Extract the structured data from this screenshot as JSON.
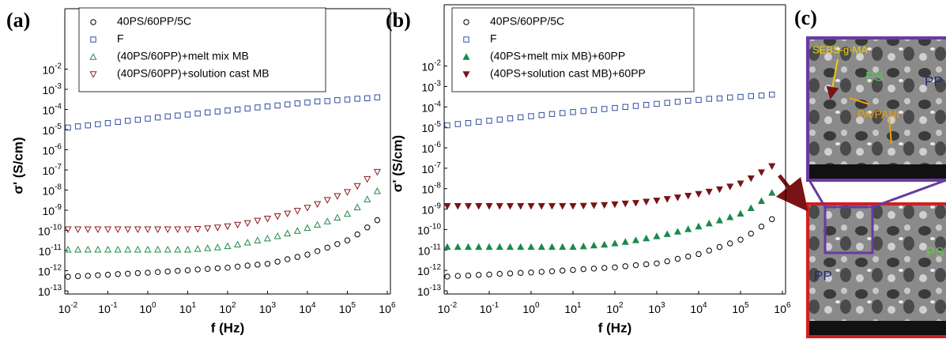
{
  "chart_data": [
    {
      "type": "scatter",
      "panel_label": "(a)",
      "xlabel": "f (Hz)",
      "ylabel": "σ' (S/cm)",
      "log_x": true,
      "log_y": true,
      "legend": "upper center",
      "xlim": [
        0.01,
        1000000
      ],
      "ylim": [
        1e-13,
        10
      ],
      "xticks": [
        {
          "value": 0.01,
          "label": "10-2"
        },
        {
          "value": 0.1,
          "label": "10-1"
        },
        {
          "value": 1,
          "label": "100"
        },
        {
          "value": 10,
          "label": "101"
        },
        {
          "value": 100,
          "label": "102"
        },
        {
          "value": 1000,
          "label": "103"
        },
        {
          "value": 10000,
          "label": "104"
        },
        {
          "value": 100000,
          "label": "105"
        },
        {
          "value": 1000000,
          "label": "106"
        }
      ],
      "yticks": [
        {
          "value": 1e-13,
          "label": "10-13"
        },
        {
          "value": 1e-12,
          "label": "10-12"
        },
        {
          "value": 1e-11,
          "label": "10-11"
        },
        {
          "value": 1e-10,
          "label": "10-10"
        },
        {
          "value": 1e-09,
          "label": "10-9"
        },
        {
          "value": 1e-08,
          "label": "10-8"
        },
        {
          "value": 1e-07,
          "label": "10-7"
        },
        {
          "value": 1e-06,
          "label": "10-6"
        },
        {
          "value": 1e-05,
          "label": "10-5"
        },
        {
          "value": 0.0001,
          "label": "10-4"
        },
        {
          "value": 0.001,
          "label": "10-3"
        },
        {
          "value": 0.01,
          "label": "10-2"
        }
      ],
      "x": [
        0.01,
        0.0178,
        0.0316,
        0.0562,
        0.1,
        0.178,
        0.316,
        0.562,
        1,
        1.78,
        3.16,
        5.62,
        10,
        17.8,
        31.6,
        56.2,
        100,
        178,
        316,
        562,
        1000,
        1780,
        3160,
        5620,
        10000,
        17800,
        31600,
        56200,
        100000,
        178000,
        316000,
        562000
      ],
      "series": [
        {
          "name": "40PS/60PP/5C",
          "color": "#000000",
          "marker": "circle",
          "filled": false,
          "values": [
            5e-13,
            5.4e-13,
            5.6e-13,
            6e-13,
            6.3e-13,
            6.8e-13,
            7.1e-13,
            7.6e-13,
            7.9e-13,
            8.5e-13,
            9.1e-13,
            9.8e-13,
            1.05e-12,
            1.15e-12,
            1.23e-12,
            1.32e-12,
            1.41e-12,
            1.6e-12,
            1.8e-12,
            2e-12,
            2.2e-12,
            2.8e-12,
            3.7e-12,
            4.8e-12,
            6.3e-12,
            9.3e-12,
            1.4e-11,
            2.1e-11,
            3.2e-11,
            6.3e-11,
            1.4e-10,
            3.2e-10
          ]
        },
        {
          "name": "F",
          "color": "#2e4fa0",
          "marker": "square",
          "filled": false,
          "values": [
            1.26e-05,
            1.45e-05,
            1.62e-05,
            1.86e-05,
            2.1e-05,
            2.4e-05,
            2.75e-05,
            3.1e-05,
            3.5e-05,
            4e-05,
            4.5e-05,
            5e-05,
            5.6e-05,
            6.3e-05,
            7.1e-05,
            7.9e-05,
            8.9e-05,
            0.0001,
            0.000112,
            0.000126,
            0.000141,
            0.000158,
            0.000178,
            0.0002,
            0.00022,
            0.00025,
            0.00026,
            0.00029,
            0.00031,
            0.00034,
            0.00036,
            0.0004
          ]
        },
        {
          "name": "(40PS/60PP)+melt mix MB",
          "color": "#1a8a4a",
          "marker": "triangle-up",
          "filled": false,
          "values": [
            1.12e-11,
            1.12e-11,
            1.12e-11,
            1.12e-11,
            1.12e-11,
            1.12e-11,
            1.12e-11,
            1.12e-11,
            1.12e-11,
            1.12e-11,
            1.12e-11,
            1.12e-11,
            1.12e-11,
            1.2e-11,
            1.32e-11,
            1.45e-11,
            1.66e-11,
            2e-11,
            2.5e-11,
            3.2e-11,
            4e-11,
            5.2e-11,
            7.1e-11,
            9.5e-11,
            1.32e-10,
            1.9e-10,
            2.8e-10,
            4.3e-10,
            6.6e-10,
            1.4e-09,
            3.5e-09,
            8.9e-09
          ]
        },
        {
          "name": "(40PS/60PP)+solution cast MB",
          "color": "#8b1a1a",
          "marker": "triangle-down",
          "filled": false,
          "values": [
            1.12e-10,
            1.12e-10,
            1.12e-10,
            1.12e-10,
            1.12e-10,
            1.12e-10,
            1.12e-10,
            1.12e-10,
            1.12e-10,
            1.12e-10,
            1.12e-10,
            1.12e-10,
            1.12e-10,
            1.17e-10,
            1.26e-10,
            1.38e-10,
            1.58e-10,
            1.9e-10,
            2.3e-10,
            3e-10,
            3.8e-10,
            5e-10,
            6.8e-10,
            9.3e-10,
            1.32e-09,
            2e-09,
            3.2e-09,
            5e-09,
            7.9e-09,
            1.58e-08,
            3.5e-08,
            7.9e-08
          ]
        }
      ]
    },
    {
      "type": "scatter",
      "panel_label": "(b)",
      "xlabel": "f (Hz)",
      "ylabel": "σ' (S/cm)",
      "log_x": true,
      "log_y": true,
      "legend": "upper center",
      "xlim": [
        0.01,
        1000000
      ],
      "ylim": [
        1e-13,
        10
      ],
      "xticks": [
        {
          "value": 0.01,
          "label": "10-2"
        },
        {
          "value": 0.1,
          "label": "10-1"
        },
        {
          "value": 1,
          "label": "100"
        },
        {
          "value": 10,
          "label": "101"
        },
        {
          "value": 100,
          "label": "102"
        },
        {
          "value": 1000,
          "label": "103"
        },
        {
          "value": 10000,
          "label": "104"
        },
        {
          "value": 100000,
          "label": "105"
        },
        {
          "value": 1000000,
          "label": "106"
        }
      ],
      "yticks": [
        {
          "value": 1e-13,
          "label": "10-13"
        },
        {
          "value": 1e-12,
          "label": "10-12"
        },
        {
          "value": 1e-11,
          "label": "10-11"
        },
        {
          "value": 1e-10,
          "label": "10-10"
        },
        {
          "value": 1e-09,
          "label": "10-9"
        },
        {
          "value": 1e-08,
          "label": "10-8"
        },
        {
          "value": 1e-07,
          "label": "10-7"
        },
        {
          "value": 1e-06,
          "label": "10-6"
        },
        {
          "value": 1e-05,
          "label": "10-5"
        },
        {
          "value": 0.0001,
          "label": "10-4"
        },
        {
          "value": 0.001,
          "label": "10-3"
        },
        {
          "value": 0.01,
          "label": "10-2"
        }
      ],
      "x": [
        0.01,
        0.0178,
        0.0316,
        0.0562,
        0.1,
        0.178,
        0.316,
        0.562,
        1,
        1.78,
        3.16,
        5.62,
        10,
        17.8,
        31.6,
        56.2,
        100,
        178,
        316,
        562,
        1000,
        1780,
        3160,
        5620,
        10000,
        17800,
        31600,
        56200,
        100000,
        178000,
        316000,
        562000
      ],
      "series": [
        {
          "name": "40PS/60PP/5C",
          "color": "#000000",
          "marker": "circle",
          "filled": false,
          "values": [
            5e-13,
            5.4e-13,
            5.6e-13,
            6e-13,
            6.3e-13,
            6.8e-13,
            7.1e-13,
            7.6e-13,
            7.9e-13,
            8.5e-13,
            9.1e-13,
            9.8e-13,
            1.05e-12,
            1.15e-12,
            1.23e-12,
            1.32e-12,
            1.41e-12,
            1.6e-12,
            1.8e-12,
            2e-12,
            2.2e-12,
            2.8e-12,
            3.7e-12,
            4.8e-12,
            6.3e-12,
            9.3e-12,
            1.4e-11,
            2.1e-11,
            3.2e-11,
            6.3e-11,
            1.4e-10,
            3.2e-10
          ]
        },
        {
          "name": "F",
          "color": "#2e4fa0",
          "marker": "square",
          "filled": false,
          "values": [
            1.26e-05,
            1.45e-05,
            1.62e-05,
            1.86e-05,
            2.1e-05,
            2.4e-05,
            2.75e-05,
            3.1e-05,
            3.5e-05,
            4e-05,
            4.5e-05,
            5e-05,
            5.6e-05,
            6.3e-05,
            7.1e-05,
            7.9e-05,
            8.9e-05,
            0.0001,
            0.000112,
            0.000126,
            0.000141,
            0.000158,
            0.000178,
            0.0002,
            0.00022,
            0.00025,
            0.00026,
            0.00029,
            0.00031,
            0.00034,
            0.00036,
            0.0004
          ]
        },
        {
          "name": "(40PS+melt mix MB)+60PP",
          "color": "#1a8a4a",
          "marker": "triangle-up",
          "filled": true,
          "values": [
            1.41e-11,
            1.41e-11,
            1.41e-11,
            1.41e-11,
            1.41e-11,
            1.41e-11,
            1.41e-11,
            1.41e-11,
            1.41e-11,
            1.41e-11,
            1.41e-11,
            1.41e-11,
            1.41e-11,
            1.51e-11,
            1.66e-11,
            1.82e-11,
            2.1e-11,
            2.5e-11,
            3e-11,
            3.7e-11,
            4.7e-11,
            6e-11,
            7.9e-11,
            1.05e-10,
            1.41e-10,
            2e-10,
            2.8e-10,
            4e-10,
            6e-10,
            1.12e-09,
            2.5e-09,
            6.3e-09
          ]
        },
        {
          "name": "(40PS+solution cast MB)+60PP",
          "color": "#7a1414",
          "marker": "triangle-down",
          "filled": true,
          "values": [
            1.41e-09,
            1.41e-09,
            1.41e-09,
            1.41e-09,
            1.41e-09,
            1.41e-09,
            1.41e-09,
            1.41e-09,
            1.41e-09,
            1.41e-09,
            1.41e-09,
            1.41e-09,
            1.41e-09,
            1.45e-09,
            1.51e-09,
            1.58e-09,
            1.7e-09,
            1.86e-09,
            2e-09,
            2.3e-09,
            2.6e-09,
            3.1e-09,
            3.7e-09,
            4.5e-09,
            5.5e-09,
            7.1e-09,
            9.3e-09,
            1.26e-08,
            1.78e-08,
            3.2e-08,
            6.3e-08,
            1.26e-07
          ]
        }
      ]
    }
  ],
  "panel_c": {
    "label": "(c)",
    "top_annotations": [
      "SEBS-g-MA",
      "PS",
      "PP",
      "PA/PANI"
    ],
    "bottom_annotations": [
      "PS",
      "PP"
    ]
  }
}
